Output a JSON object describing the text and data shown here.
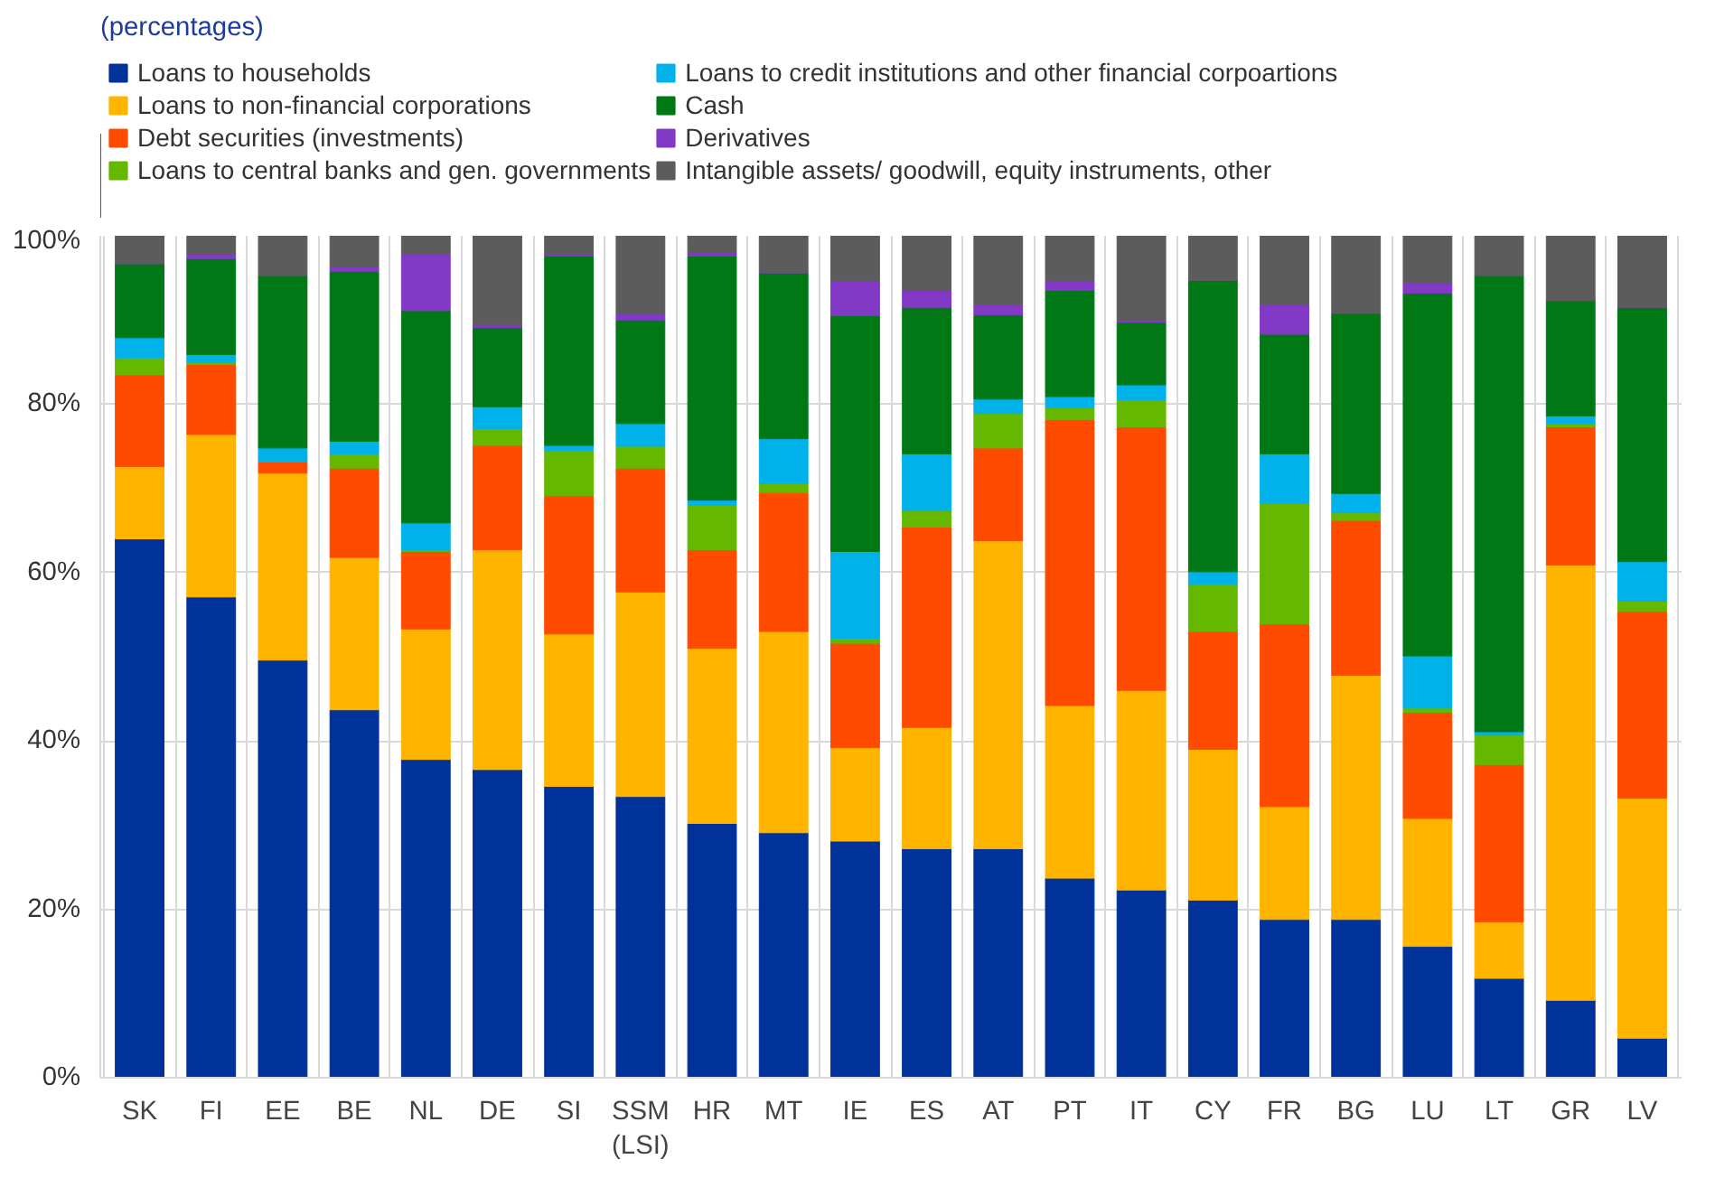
{
  "chart_data": {
    "type": "bar",
    "stacked": true,
    "title": "(percentages)",
    "categories": [
      "SK",
      "FI",
      "EE",
      "BE",
      "NL",
      "DE",
      "SI",
      "SSM\n(LSI)",
      "HR",
      "MT",
      "IE",
      "ES",
      "AT",
      "PT",
      "IT",
      "CY",
      "FR",
      "BG",
      "LU",
      "LT",
      "GR",
      "LV"
    ],
    "series": [
      {
        "name": "Loans to households",
        "color": "#003299",
        "values": [
          64.0,
          57.1,
          49.6,
          43.7,
          37.8,
          36.6,
          34.6,
          33.4,
          30.2,
          29.1,
          28.1,
          27.2,
          27.2,
          23.7,
          22.3,
          21.1,
          18.8,
          18.8,
          15.6,
          11.8,
          9.2,
          4.7
        ]
      },
      {
        "name": "Loans to non-financial corporations",
        "color": "#ffb400",
        "values": [
          8.6,
          19.3,
          22.2,
          18.1,
          15.5,
          26.1,
          18.1,
          24.3,
          20.8,
          23.9,
          11.1,
          14.4,
          36.6,
          20.5,
          23.7,
          17.9,
          13.4,
          29.0,
          15.2,
          6.7,
          51.7,
          28.5
        ]
      },
      {
        "name": "Debt securities (investments)",
        "color": "#ff4b00",
        "values": [
          10.9,
          8.3,
          1.4,
          10.6,
          9.2,
          12.4,
          16.4,
          14.7,
          11.7,
          16.5,
          12.4,
          23.8,
          11.0,
          34.0,
          31.3,
          14.0,
          21.7,
          18.4,
          12.6,
          18.7,
          16.4,
          22.2
        ]
      },
      {
        "name": "Loans to central banks and gen. governments",
        "color": "#65b800",
        "values": [
          2.0,
          0.3,
          0,
          1.7,
          0.2,
          2.0,
          5.4,
          2.6,
          5.3,
          1.1,
          0.6,
          2.0,
          4.1,
          1.4,
          3.2,
          5.6,
          14.3,
          0.9,
          0.5,
          3.5,
          0.4,
          1.2
        ]
      },
      {
        "name": "Loans to credit institutions and other financial corpoartions",
        "color": "#00b1ea",
        "values": [
          2.4,
          0.9,
          1.6,
          1.5,
          3.2,
          2.6,
          0.6,
          2.7,
          0.6,
          5.3,
          10.3,
          6.7,
          1.7,
          1.3,
          1.8,
          1.5,
          5.9,
          2.3,
          6.2,
          0.4,
          0.9,
          4.7
        ]
      },
      {
        "name": "Cash",
        "color": "#007816",
        "values": [
          8.8,
          11.4,
          20.5,
          20.2,
          25.2,
          9.4,
          22.5,
          12.3,
          29.0,
          19.7,
          28.0,
          17.4,
          10.0,
          12.6,
          7.4,
          34.6,
          14.2,
          21.4,
          43.1,
          54.2,
          13.7,
          30.2
        ]
      },
      {
        "name": "Derivatives",
        "color": "#8139c6",
        "values": [
          0,
          0.5,
          0,
          0.5,
          6.8,
          0.3,
          0.3,
          0.8,
          0.4,
          0,
          4.2,
          2.0,
          1.2,
          1.2,
          0.3,
          0,
          3.5,
          0,
          1.2,
          0,
          0,
          0
        ]
      },
      {
        "name": "Intangible assets/ goodwill, equity instruments, other",
        "color": "#5c5c5c",
        "values": [
          3.3,
          2.2,
          4.7,
          3.7,
          2.1,
          10.6,
          2.1,
          9.2,
          2.0,
          4.4,
          5.3,
          6.5,
          8.2,
          5.3,
          10.0,
          5.3,
          8.2,
          9.2,
          5.6,
          4.7,
          7.7,
          8.5
        ]
      }
    ],
    "ylim": [
      0,
      100
    ],
    "yticks": [
      {
        "value": 0,
        "label": "0%"
      },
      {
        "value": 20,
        "label": "20%"
      },
      {
        "value": 40,
        "label": "40%"
      },
      {
        "value": 60,
        "label": "60%"
      },
      {
        "value": 80,
        "label": "80%"
      },
      {
        "value": 100,
        "label": "100%"
      }
    ],
    "grid": true,
    "legend": "top"
  }
}
